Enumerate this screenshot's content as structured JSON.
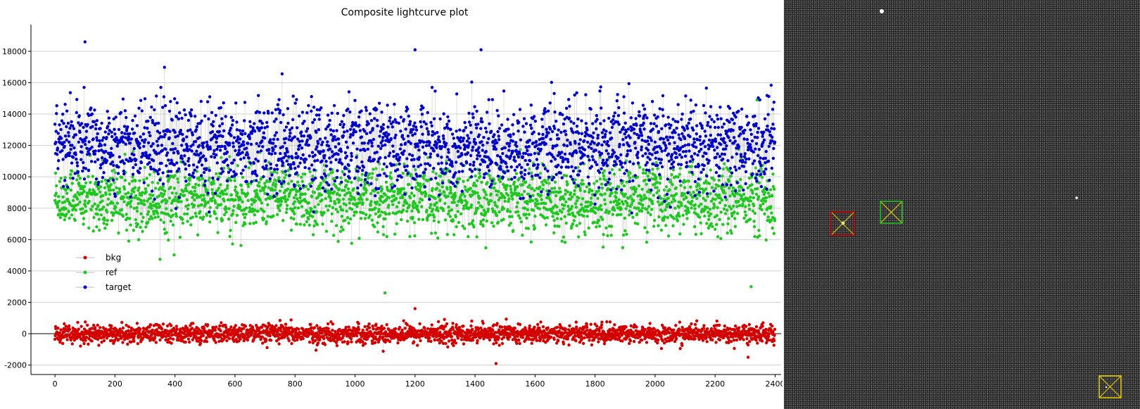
{
  "plot": {
    "title": "Composite lightcurve plot"
  },
  "chart_data": {
    "type": "scatter",
    "title": "Composite lightcurve plot",
    "xlabel": "",
    "ylabel": "",
    "xlim": [
      -80,
      2420
    ],
    "ylim": [
      -2600,
      19700
    ],
    "x_ticks": [
      0,
      200,
      400,
      600,
      800,
      1000,
      1200,
      1400,
      1600,
      1800,
      2000,
      2200,
      2400
    ],
    "y_ticks": [
      -2000,
      0,
      2000,
      4000,
      6000,
      8000,
      10000,
      12000,
      14000,
      16000,
      18000
    ],
    "grid": true,
    "legend_position": "bottom-left",
    "series": [
      {
        "name": "bkg",
        "color": "#d40000",
        "mean": 0,
        "spread": 450,
        "points": 2400,
        "outliers": [
          {
            "x": 1200,
            "y": 1600
          },
          {
            "x": 1470,
            "y": -1900
          },
          {
            "x": 2310,
            "y": -1500
          }
        ]
      },
      {
        "name": "ref",
        "color": "#1ec81e",
        "mean": 8600,
        "spread": 1600,
        "points": 2400,
        "outliers": [
          {
            "x": 1100,
            "y": 2600
          },
          {
            "x": 2320,
            "y": 3000
          },
          {
            "x": 2340,
            "y": 14900
          }
        ]
      },
      {
        "name": "target",
        "color": "#0000c8",
        "mean": 12000,
        "spread": 2000,
        "points": 2400,
        "outliers": [
          {
            "x": 100,
            "y": 18600
          },
          {
            "x": 1200,
            "y": 18100
          },
          {
            "x": 1420,
            "y": 18100
          }
        ]
      }
    ]
  },
  "image_view": {
    "markers": [
      {
        "name": "target-star-marker",
        "color": "#d40000",
        "overlay_color": "#e8d200"
      },
      {
        "name": "reference-star-marker",
        "color": "#1ec81e",
        "overlay_color": "#e8d200"
      },
      {
        "name": "background-marker",
        "color": "#e8d200",
        "overlay_color": "#e8d200"
      }
    ]
  }
}
